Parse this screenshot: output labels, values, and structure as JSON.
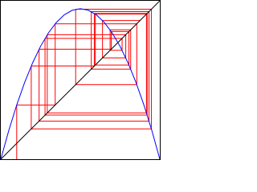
{
  "chart_data": {
    "type": "cobweb",
    "xlim": [
      0,
      1
    ],
    "ylim": [
      0,
      1
    ],
    "curve": {
      "color": "#0000ff",
      "x": [
        0,
        0.05,
        0.1,
        0.15,
        0.2,
        0.25,
        0.3,
        0.35,
        0.4,
        0.45,
        0.5,
        0.55,
        0.6,
        0.65,
        0.7,
        0.75,
        0.8,
        0.85,
        0.9,
        0.95,
        1
      ],
      "values": [
        0,
        0.1805,
        0.342,
        0.4845,
        0.608,
        0.7125,
        0.798,
        0.8645,
        0.912,
        0.9405,
        0.95,
        0.9405,
        0.912,
        0.8645,
        0.798,
        0.7125,
        0.608,
        0.4845,
        0.342,
        0.1805,
        0
      ]
    },
    "diagonal": {
      "color": "#000000",
      "x": [
        0,
        1
      ],
      "values": [
        0,
        1
      ]
    },
    "orbit": {
      "color": "#ff0000",
      "values": [
        0.1,
        0.342,
        0.8551,
        0.4708,
        0.9468,
        0.1914,
        0.5881,
        0.9205,
        0.2781,
        0.7629,
        0.6873,
        0.8167,
        0.5689,
        0.932,
        0.2408,
        0.6947,
        0.8059,
        0.5944,
        0.9161,
        0.2921,
        0.7858,
        0.6396,
        0.8759
      ]
    }
  }
}
